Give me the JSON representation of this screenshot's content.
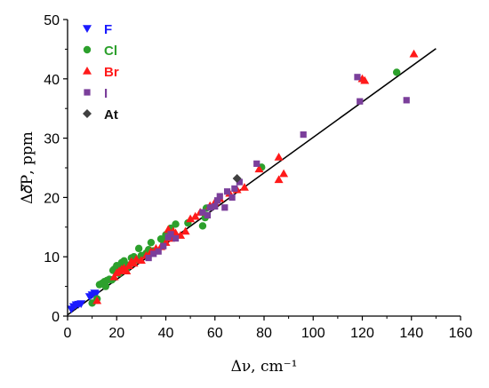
{
  "chart_data": {
    "type": "scatter",
    "xlabel": "Δν, cm⁻¹",
    "ylabel": "Δ𝛿Ƥ, ppm",
    "xlim": [
      0,
      160
    ],
    "ylim": [
      0,
      50
    ],
    "xticks": [
      "0",
      "20",
      "40",
      "60",
      "80",
      "100",
      "120",
      "140",
      "160"
    ],
    "yticks": [
      "0",
      "10",
      "20",
      "30",
      "40",
      "50"
    ],
    "grid": false,
    "legend_position": "top-left",
    "series": [
      {
        "name": "F",
        "marker": "triangle-down",
        "color": "#1a1aff",
        "points": [
          [
            1.5,
            1.2
          ],
          [
            2.5,
            1.6
          ],
          [
            3.5,
            1.9
          ],
          [
            4.5,
            2.0
          ],
          [
            5.5,
            2.1
          ],
          [
            9,
            3.3
          ],
          [
            10,
            3.6
          ],
          [
            11,
            3.9
          ],
          [
            11.5,
            3.7
          ]
        ]
      },
      {
        "name": "Cl",
        "marker": "circle",
        "color": "#2ca02c",
        "points": [
          [
            10,
            2.2
          ],
          [
            12,
            2.9
          ],
          [
            13,
            5.3
          ],
          [
            14,
            5.5
          ],
          [
            15,
            5.8
          ],
          [
            15.5,
            5.0
          ],
          [
            16,
            6.0
          ],
          [
            17,
            6.2
          ],
          [
            18,
            6.1
          ],
          [
            18.5,
            7.7
          ],
          [
            19,
            7.9
          ],
          [
            20,
            8.5
          ],
          [
            21,
            7.2
          ],
          [
            22,
            9.0
          ],
          [
            22.5,
            8.2
          ],
          [
            23,
            9.3
          ],
          [
            24,
            8.0
          ],
          [
            25,
            8.6
          ],
          [
            26,
            9.8
          ],
          [
            27,
            10.0
          ],
          [
            28,
            9.5
          ],
          [
            29,
            11.4
          ],
          [
            30,
            10.2
          ],
          [
            32,
            10.6
          ],
          [
            33,
            11.2
          ],
          [
            34,
            12.4
          ],
          [
            35,
            11.0
          ],
          [
            38,
            13.0
          ],
          [
            39,
            12.7
          ],
          [
            40,
            13.7
          ],
          [
            42,
            14.8
          ],
          [
            44,
            15.5
          ],
          [
            49,
            15.7
          ],
          [
            55,
            15.2
          ],
          [
            56,
            16.6
          ],
          [
            56.5,
            18.2
          ],
          [
            79,
            25.1
          ],
          [
            134,
            41.1
          ]
        ]
      },
      {
        "name": "Br",
        "marker": "triangle-up",
        "color": "#ff1a1a",
        "points": [
          [
            12,
            2.6
          ],
          [
            19,
            6.6
          ],
          [
            20,
            7.3
          ],
          [
            21,
            7.6
          ],
          [
            22,
            7.9
          ],
          [
            23,
            8.1
          ],
          [
            24,
            7.6
          ],
          [
            25,
            8.5
          ],
          [
            26,
            9.2
          ],
          [
            27,
            8.9
          ],
          [
            28,
            9.6
          ],
          [
            30,
            9.4
          ],
          [
            32,
            10.2
          ],
          [
            34,
            10.9
          ],
          [
            36,
            11.4
          ],
          [
            38,
            11.7
          ],
          [
            40,
            12.4
          ],
          [
            41,
            14.6
          ],
          [
            42,
            13.1
          ],
          [
            43,
            14.3
          ],
          [
            44,
            14.0
          ],
          [
            46,
            13.6
          ],
          [
            48,
            14.3
          ],
          [
            50,
            16.4
          ],
          [
            52,
            16.8
          ],
          [
            54,
            17.5
          ],
          [
            58,
            18.6
          ],
          [
            60,
            19.2
          ],
          [
            62,
            19.8
          ],
          [
            66,
            20.7
          ],
          [
            69,
            21.3
          ],
          [
            72,
            21.7
          ],
          [
            78,
            24.8
          ],
          [
            86,
            26.8
          ],
          [
            86,
            23.0
          ],
          [
            88,
            24.0
          ],
          [
            120,
            40.0
          ],
          [
            121,
            39.7
          ],
          [
            141,
            44.2
          ]
        ]
      },
      {
        "name": "I",
        "marker": "square",
        "color": "#7b3f9b",
        "points": [
          [
            33,
            9.8
          ],
          [
            35,
            10.5
          ],
          [
            37,
            10.9
          ],
          [
            39,
            11.8
          ],
          [
            41,
            13.3
          ],
          [
            42,
            13.8
          ],
          [
            44,
            13.1
          ],
          [
            55,
            17.5
          ],
          [
            57,
            17.0
          ],
          [
            58,
            18.3
          ],
          [
            60,
            18.5
          ],
          [
            61,
            19.5
          ],
          [
            62,
            20.2
          ],
          [
            64,
            18.3
          ],
          [
            65,
            21.0
          ],
          [
            67,
            20.0
          ],
          [
            68,
            21.5
          ],
          [
            70,
            22.6
          ],
          [
            77,
            25.7
          ],
          [
            96,
            30.6
          ],
          [
            118,
            40.3
          ],
          [
            119,
            36.2
          ],
          [
            138,
            36.4
          ]
        ]
      },
      {
        "name": "At",
        "marker": "diamond",
        "color": "#404040",
        "points": [
          [
            69,
            23.2
          ]
        ]
      }
    ],
    "fit_line": {
      "x": [
        0,
        150
      ],
      "y": [
        0.2,
        45.1
      ],
      "color": "#000000"
    }
  }
}
